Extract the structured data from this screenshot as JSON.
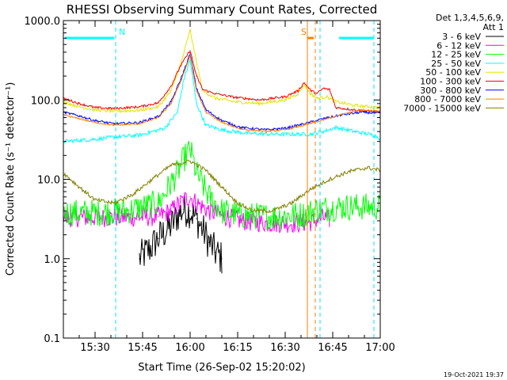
{
  "chart_data": {
    "type": "line",
    "title": "RHESSI Observing Summary Count Rates, Corrected",
    "xlabel": "Start Time (26-Sep-02 15:20:02)",
    "ylabel": "Corrected Count Rate (s⁻¹ detector⁻¹)",
    "y_scale": "log",
    "ylim": [
      0.1,
      1000.0
    ],
    "xlim_minutes_after_1520": [
      0,
      100
    ],
    "y_ticks": [
      "1000.0",
      "100.0",
      "10.0",
      "1.0",
      "0.1"
    ],
    "x_ticks": [
      {
        "label": "15:30",
        "m": 10
      },
      {
        "label": "15:45",
        "m": 25
      },
      {
        "label": "16:00",
        "m": 40
      },
      {
        "label": "16:15",
        "m": 55
      },
      {
        "label": "16:30",
        "m": 70
      },
      {
        "label": "16:45",
        "m": 85
      },
      {
        "label": "17:00",
        "m": 100
      }
    ],
    "legend_header": [
      "Det 1,3,4,5,6,9,",
      "Att 1"
    ],
    "legend_position": "right",
    "footer_timestamp": "19-Oct-2021 19:37",
    "flags": [
      {
        "label": "N",
        "color": "#00ffff",
        "segments": [
          [
            0.5,
            16
          ],
          [
            87,
            98
          ]
        ]
      },
      {
        "label": "S",
        "color": "#ff8000",
        "segments": [
          [
            77,
            79
          ]
        ]
      }
    ],
    "vertical_markers": [
      {
        "m": 16.5,
        "color": "#00e5ff",
        "style": "dashed"
      },
      {
        "m": 77.0,
        "color": "#ff8000",
        "style": "solid"
      },
      {
        "m": 79.5,
        "color": "#ff8000",
        "style": "dashed"
      },
      {
        "m": 81.0,
        "color": "#00e5ff",
        "style": "dashed"
      },
      {
        "m": 98.0,
        "color": "#00e5ff",
        "style": "dashed"
      }
    ],
    "series": [
      {
        "name": "3 - 6 keV",
        "color": "#000000",
        "points": [
          [
            24,
            1
          ],
          [
            27,
            1.3
          ],
          [
            30,
            1.8
          ],
          [
            34,
            2.6
          ],
          [
            36,
            3.5
          ],
          [
            38,
            4.2
          ],
          [
            40,
            4.0
          ],
          [
            42,
            3.2
          ],
          [
            44,
            2.3
          ],
          [
            46,
            1.6
          ],
          [
            48,
            1.2
          ],
          [
            50,
            1
          ]
        ]
      },
      {
        "name": "6 - 12 keV",
        "color": "#ff00ff",
        "points": [
          [
            0,
            3.3
          ],
          [
            10,
            3.3
          ],
          [
            20,
            3.3
          ],
          [
            30,
            3.4
          ],
          [
            34,
            4
          ],
          [
            38,
            5.5
          ],
          [
            40,
            6
          ],
          [
            42,
            5
          ],
          [
            46,
            4
          ],
          [
            50,
            3.5
          ],
          [
            56,
            3
          ],
          [
            65,
            2.8
          ],
          [
            75,
            2.8
          ],
          [
            78,
            2.9
          ],
          [
            82,
            3.3
          ],
          [
            84,
            3.1
          ]
        ]
      },
      {
        "name": "12 - 25 keV",
        "color": "#00ff00",
        "points": [
          [
            0,
            3.8
          ],
          [
            10,
            3.8
          ],
          [
            20,
            4
          ],
          [
            30,
            5
          ],
          [
            36,
            12
          ],
          [
            38,
            18
          ],
          [
            40,
            24
          ],
          [
            42,
            12
          ],
          [
            46,
            6
          ],
          [
            50,
            4
          ],
          [
            56,
            3.5
          ],
          [
            66,
            3.4
          ],
          [
            76,
            3.6
          ],
          [
            80,
            4.2
          ],
          [
            88,
            4.5
          ],
          [
            100,
            4.5
          ]
        ]
      },
      {
        "name": "25 - 50 keV",
        "color": "#00ffff",
        "points": [
          [
            0,
            30
          ],
          [
            5,
            31
          ],
          [
            10,
            32
          ],
          [
            16,
            34
          ],
          [
            24,
            36
          ],
          [
            32,
            44
          ],
          [
            36,
            70
          ],
          [
            38,
            180
          ],
          [
            40,
            320
          ],
          [
            42,
            90
          ],
          [
            45,
            48
          ],
          [
            50,
            42
          ],
          [
            58,
            38
          ],
          [
            66,
            37
          ],
          [
            74,
            37
          ],
          [
            78,
            37
          ],
          [
            82,
            40
          ],
          [
            86,
            45
          ],
          [
            92,
            40
          ],
          [
            98,
            36
          ],
          [
            100,
            33
          ]
        ]
      },
      {
        "name": "50 - 100 keV",
        "color": "#e5e500",
        "points": [
          [
            0,
            95
          ],
          [
            5,
            82
          ],
          [
            10,
            75
          ],
          [
            16,
            72
          ],
          [
            24,
            74
          ],
          [
            30,
            82
          ],
          [
            34,
            130
          ],
          [
            37,
            280
          ],
          [
            40,
            760
          ],
          [
            42,
            300
          ],
          [
            44,
            130
          ],
          [
            48,
            105
          ],
          [
            54,
            95
          ],
          [
            62,
            90
          ],
          [
            70,
            100
          ],
          [
            74,
            120
          ],
          [
            76,
            155
          ],
          [
            78,
            120
          ],
          [
            80,
            105
          ],
          [
            83,
            110
          ],
          [
            86,
            95
          ],
          [
            92,
            85
          ],
          [
            100,
            80
          ]
        ]
      },
      {
        "name": "100 - 300 keV",
        "color": "#ff0000",
        "points": [
          [
            0,
            105
          ],
          [
            5,
            90
          ],
          [
            10,
            80
          ],
          [
            16,
            78
          ],
          [
            24,
            82
          ],
          [
            30,
            92
          ],
          [
            34,
            150
          ],
          [
            37,
            270
          ],
          [
            40,
            420
          ],
          [
            42,
            200
          ],
          [
            44,
            135
          ],
          [
            48,
            120
          ],
          [
            54,
            108
          ],
          [
            62,
            100
          ],
          [
            70,
            110
          ],
          [
            74,
            130
          ],
          [
            76,
            165
          ],
          [
            78,
            132
          ],
          [
            80,
            120
          ],
          [
            82,
            140
          ],
          [
            84,
            135
          ],
          [
            86,
            80
          ],
          [
            92,
            75
          ],
          [
            100,
            70
          ]
        ]
      },
      {
        "name": "300 - 800 keV",
        "color": "#0000ff",
        "points": [
          [
            0,
            70
          ],
          [
            5,
            63
          ],
          [
            10,
            55
          ],
          [
            16,
            50
          ],
          [
            24,
            52
          ],
          [
            30,
            62
          ],
          [
            34,
            95
          ],
          [
            37,
            180
          ],
          [
            40,
            380
          ],
          [
            42,
            140
          ],
          [
            45,
            75
          ],
          [
            50,
            55
          ],
          [
            56,
            45
          ],
          [
            64,
            42
          ],
          [
            70,
            44
          ],
          [
            76,
            50
          ],
          [
            82,
            58
          ],
          [
            88,
            65
          ],
          [
            94,
            70
          ],
          [
            100,
            68
          ]
        ]
      },
      {
        "name": "800 - 7000 keV",
        "color": "#ff8000",
        "points": [
          [
            0,
            65
          ],
          [
            5,
            58
          ],
          [
            10,
            52
          ],
          [
            16,
            48
          ],
          [
            24,
            50
          ],
          [
            30,
            60
          ],
          [
            34,
            90
          ],
          [
            37,
            170
          ],
          [
            40,
            360
          ],
          [
            42,
            130
          ],
          [
            45,
            70
          ],
          [
            50,
            52
          ],
          [
            56,
            43
          ],
          [
            64,
            40
          ],
          [
            70,
            42
          ],
          [
            76,
            48
          ],
          [
            82,
            56
          ],
          [
            88,
            66
          ],
          [
            94,
            75
          ],
          [
            100,
            72
          ]
        ]
      },
      {
        "name": "7000 - 15000 keV",
        "color": "#808000",
        "points": [
          [
            0,
            12
          ],
          [
            5,
            8
          ],
          [
            10,
            5.5
          ],
          [
            16,
            5
          ],
          [
            22,
            6.5
          ],
          [
            28,
            10
          ],
          [
            34,
            15
          ],
          [
            40,
            17
          ],
          [
            45,
            13
          ],
          [
            50,
            8
          ],
          [
            55,
            5
          ],
          [
            60,
            4
          ],
          [
            66,
            4
          ],
          [
            72,
            5
          ],
          [
            78,
            7.5
          ],
          [
            84,
            10
          ],
          [
            90,
            12.5
          ],
          [
            96,
            14
          ],
          [
            100,
            13
          ]
        ]
      }
    ]
  }
}
